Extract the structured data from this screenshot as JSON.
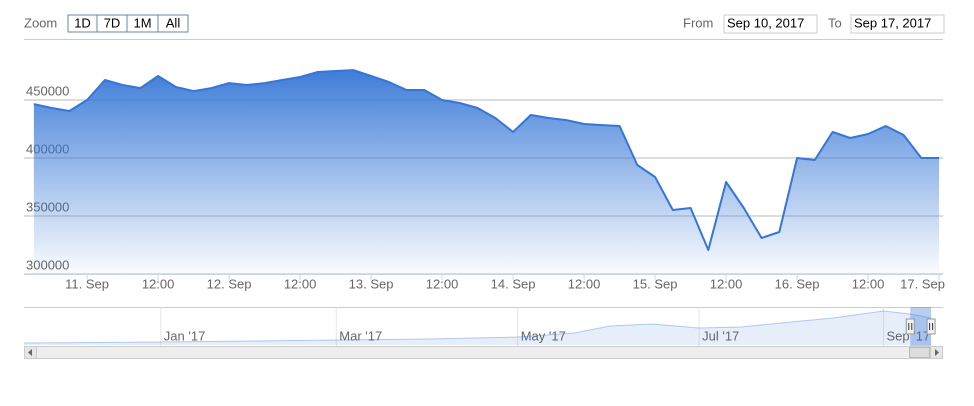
{
  "chart_data": {
    "type": "area",
    "color": "#3576d6",
    "range_selector": {
      "zoom_label": "Zoom",
      "buttons": [
        "1D",
        "7D",
        "1M",
        "All"
      ],
      "from_label": "From",
      "from": "Sep 10, 2017",
      "to_label": "To",
      "to": "Sep 17, 2017"
    },
    "x": [
      "2017-09-10 15:00",
      "2017-09-10 18:00",
      "2017-09-10 21:00",
      "2017-09-11 00:00",
      "2017-09-11 03:00",
      "2017-09-11 06:00",
      "2017-09-11 09:00",
      "2017-09-11 12:00",
      "2017-09-11 15:00",
      "2017-09-11 18:00",
      "2017-09-11 21:00",
      "2017-09-12 00:00",
      "2017-09-12 03:00",
      "2017-09-12 06:00",
      "2017-09-12 09:00",
      "2017-09-12 12:00",
      "2017-09-12 15:00",
      "2017-09-12 18:00",
      "2017-09-12 21:00",
      "2017-09-13 00:00",
      "2017-09-13 03:00",
      "2017-09-13 06:00",
      "2017-09-13 09:00",
      "2017-09-13 12:00",
      "2017-09-13 15:00",
      "2017-09-13 18:00",
      "2017-09-13 21:00",
      "2017-09-14 00:00",
      "2017-09-14 03:00",
      "2017-09-14 06:00",
      "2017-09-14 09:00",
      "2017-09-14 12:00",
      "2017-09-14 15:00",
      "2017-09-14 18:00",
      "2017-09-14 21:00",
      "2017-09-15 00:00",
      "2017-09-15 03:00",
      "2017-09-15 06:00",
      "2017-09-15 09:00",
      "2017-09-15 12:00",
      "2017-09-15 15:00",
      "2017-09-15 18:00",
      "2017-09-15 21:00",
      "2017-09-16 00:00",
      "2017-09-16 03:00",
      "2017-09-16 06:00",
      "2017-09-16 09:00",
      "2017-09-16 12:00",
      "2017-09-16 15:00",
      "2017-09-16 18:00",
      "2017-09-16 21:00",
      "2017-09-17 00:00"
    ],
    "values": [
      446500,
      443100,
      440500,
      450000,
      467200,
      462900,
      460300,
      470700,
      461200,
      457700,
      460300,
      464600,
      462900,
      464600,
      467200,
      469800,
      474100,
      475000,
      475800,
      470700,
      465500,
      458600,
      458600,
      450000,
      447400,
      443100,
      434500,
      422400,
      437100,
      434500,
      432700,
      429300,
      428400,
      427600,
      394000,
      383600,
      355200,
      356900,
      320700,
      379300,
      356900,
      331000,
      336200,
      400000,
      398300,
      422400,
      417200,
      420700,
      427600,
      419800,
      400000,
      400000
    ],
    "xlim": [
      "2017-09-10 13:20",
      "2017-09-17 00:40"
    ],
    "xticks": [
      {
        "value": "2017-09-11 00:00",
        "label": "11. Sep"
      },
      {
        "value": "2017-09-11 12:00",
        "label": "12:00"
      },
      {
        "value": "2017-09-12 00:00",
        "label": "12. Sep"
      },
      {
        "value": "2017-09-12 12:00",
        "label": "12:00"
      },
      {
        "value": "2017-09-13 00:00",
        "label": "13. Sep"
      },
      {
        "value": "2017-09-13 12:00",
        "label": "12:00"
      },
      {
        "value": "2017-09-14 00:00",
        "label": "14. Sep"
      },
      {
        "value": "2017-09-14 12:00",
        "label": "12:00"
      },
      {
        "value": "2017-09-15 00:00",
        "label": "15. Sep"
      },
      {
        "value": "2017-09-15 12:00",
        "label": "12:00"
      },
      {
        "value": "2017-09-16 00:00",
        "label": "16. Sep"
      },
      {
        "value": "2017-09-16 12:00",
        "label": "12:00"
      },
      {
        "value": "2017-09-17 00:00",
        "label": "17. Sep"
      }
    ],
    "ylim": [
      300000,
      500000
    ],
    "yticks": [
      300000,
      350000,
      400000,
      450000
    ],
    "grid": true,
    "navigator": {
      "x": [
        "2016-11-16",
        "2017-01-01",
        "2017-02-01",
        "2017-03-01",
        "2017-04-01",
        "2017-05-01",
        "2017-05-20",
        "2017-06-01",
        "2017-06-15",
        "2017-07-01",
        "2017-07-15",
        "2017-08-01",
        "2017-08-15",
        "2017-09-01",
        "2017-09-10",
        "2017-09-17"
      ],
      "values": [
        27000,
        40500,
        54000,
        67600,
        81000,
        108000,
        162000,
        257000,
        284000,
        230000,
        243000,
        311000,
        365000,
        459000,
        419000,
        365000
      ],
      "xlim": [
        "2016-11-16",
        "2017-09-21"
      ],
      "ylim": [
        0,
        500000
      ],
      "xticks": [
        {
          "value": "2017-01-01",
          "label": "Jan '17"
        },
        {
          "value": "2017-03-01",
          "label": "Mar '17"
        },
        {
          "value": "2017-05-01",
          "label": "May '17"
        },
        {
          "value": "2017-07-01",
          "label": "Jul '17"
        },
        {
          "value": "2017-09-01",
          "label": "Sep '17"
        }
      ]
    }
  }
}
